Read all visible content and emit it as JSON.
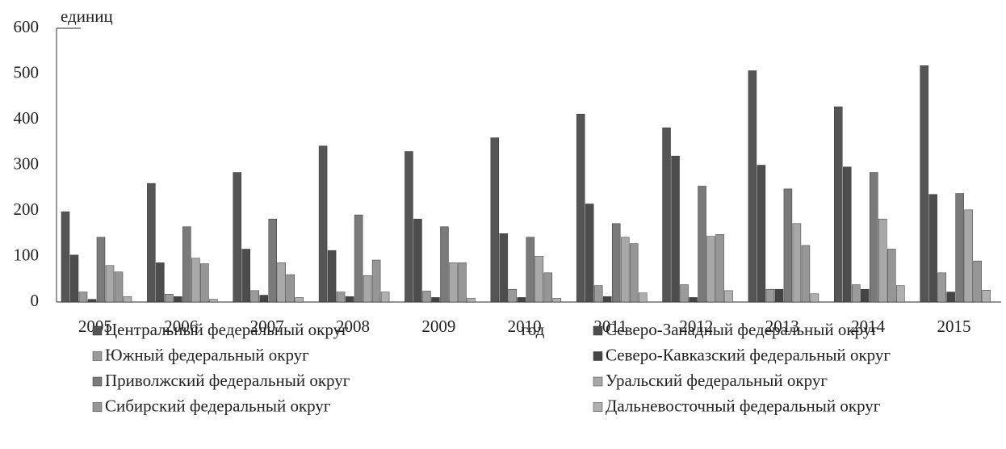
{
  "chart_data": {
    "type": "bar",
    "y_label": "единиц",
    "x_label": "год",
    "categories": [
      "2005",
      "2006",
      "2007",
      "2008",
      "2009",
      "2010",
      "2011",
      "2012",
      "2013",
      "2014",
      "2015"
    ],
    "series": [
      {
        "name": "Центральный федеральный округ",
        "color": "#555555",
        "values": [
          198,
          260,
          284,
          342,
          330,
          360,
          412,
          382,
          507,
          428,
          518
        ]
      },
      {
        "name": "Северо-Западный федеральный округ",
        "color": "#4d4d4d",
        "values": [
          103,
          86,
          116,
          113,
          182,
          150,
          215,
          320,
          300,
          296,
          236
        ]
      },
      {
        "name": "Южный федеральный округ",
        "color": "#9a9a9a",
        "values": [
          22,
          17,
          25,
          22,
          24,
          28,
          36,
          38,
          28,
          38,
          64
        ]
      },
      {
        "name": "Северо-Кавказский федеральный округ",
        "color": "#444444",
        "values": [
          6,
          12,
          15,
          12,
          10,
          10,
          12,
          10,
          28,
          28,
          22
        ]
      },
      {
        "name": "Приволжский федеральный округ",
        "color": "#7a7a7a",
        "values": [
          142,
          165,
          182,
          191,
          165,
          142,
          172,
          254,
          248,
          284,
          238
        ]
      },
      {
        "name": "Уральский федеральный округ",
        "color": "#a8a8a8",
        "values": [
          80,
          96,
          86,
          58,
          86,
          100,
          142,
          144,
          172,
          182,
          202
        ]
      },
      {
        "name": "Сибирский федеральный округ",
        "color": "#969696",
        "values": [
          66,
          84,
          60,
          92,
          86,
          64,
          128,
          148,
          124,
          116,
          90
        ]
      },
      {
        "name": "Дальневосточный федеральный округ",
        "color": "#b0b0b0",
        "values": [
          12,
          6,
          10,
          22,
          8,
          8,
          20,
          25,
          18,
          36,
          26
        ]
      }
    ],
    "ylim": [
      0,
      600
    ],
    "yticks": [
      0,
      100,
      200,
      300,
      400,
      500,
      600
    ],
    "grid": false,
    "legend": "bottom"
  }
}
